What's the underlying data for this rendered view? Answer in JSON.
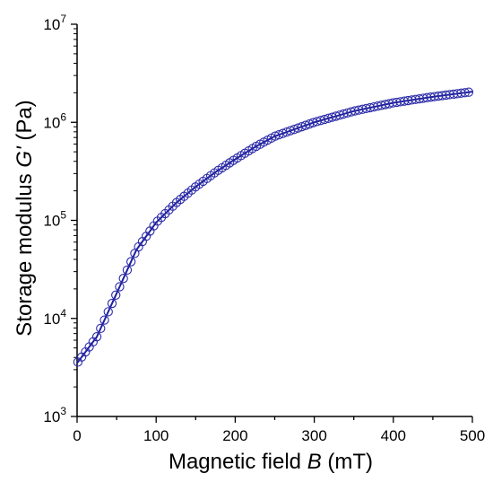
{
  "chart_data": {
    "type": "scatter",
    "xlabel": {
      "prefix": "Magnetic field ",
      "symbol": "B",
      "suffix": " (mT)"
    },
    "ylabel": {
      "prefix": "Storage modulus ",
      "symbol": "G'",
      "suffix": " (Pa)"
    },
    "xlim": [
      0,
      500
    ],
    "ylim": [
      1000,
      10000000
    ],
    "yscale": "log",
    "x_ticks": [
      0,
      100,
      200,
      300,
      400,
      500
    ],
    "y_ticks": [
      {
        "value": 1000,
        "base": "10",
        "exponent": "3"
      },
      {
        "value": 10000,
        "base": "10",
        "exponent": "4"
      },
      {
        "value": 100000,
        "base": "10",
        "exponent": "5"
      },
      {
        "value": 1000000,
        "base": "10",
        "exponent": "6"
      },
      {
        "value": 10000000,
        "base": "10",
        "exponent": "7"
      }
    ],
    "grid": false,
    "legend": "none",
    "marker": "open-circle",
    "line_color": "#1f1f9f",
    "marker_color": "#2a2aa8",
    "series": [
      {
        "x": [
          0,
          25,
          50,
          75,
          100,
          125,
          150,
          175,
          200,
          225,
          250,
          300,
          350,
          400,
          450,
          500
        ],
        "y": [
          3500,
          6500,
          18000,
          50000,
          95000,
          150000,
          220000,
          310000,
          420000,
          560000,
          720000,
          1000000,
          1300000,
          1580000,
          1820000,
          2050000
        ]
      }
    ]
  }
}
